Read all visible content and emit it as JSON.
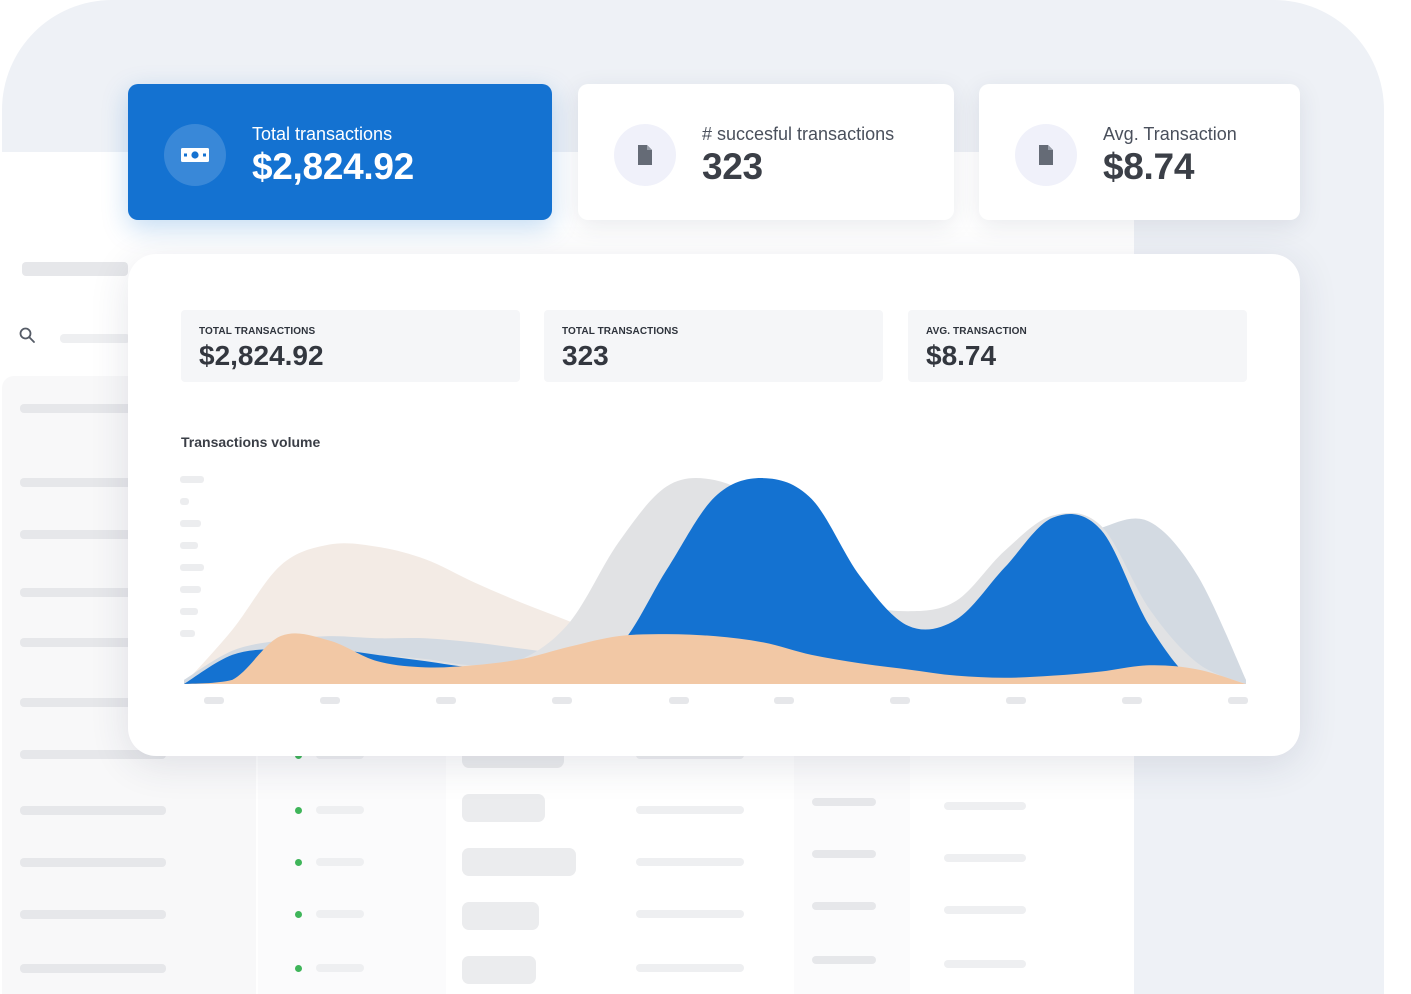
{
  "stats": [
    {
      "label": "Total transactions",
      "value": "$2,824.92",
      "icon": "banknote-icon",
      "primary": true
    },
    {
      "label": "# succesful transactions",
      "value": "323",
      "icon": "document-icon",
      "primary": false
    },
    {
      "label": "Avg. Transaction",
      "value": "$8.74",
      "icon": "document-icon",
      "primary": false
    }
  ],
  "panel": {
    "mini_cards": [
      {
        "label": "TOTAL TRANSACTIONS",
        "value": "$2,824.92"
      },
      {
        "label": "TOTAL TRANSACTIONS",
        "value": "323"
      },
      {
        "label": "AVG. TRANSACTION",
        "value": "$8.74"
      }
    ],
    "chart_title": "Transactions volume"
  },
  "colors": {
    "primary": "#1472d1",
    "series_gray": "#e1e2e4",
    "series_blue_gray": "#d3dae2",
    "series_beige": "#f3ebe5",
    "series_orange": "#f2c8a5",
    "status_green": "#3fb55a"
  },
  "chart_data": {
    "type": "area",
    "title": "Transactions volume",
    "xlabel": "",
    "ylabel": "",
    "x_tick_count": 10,
    "y_tick_count": 8,
    "grid": false,
    "legend": "none",
    "ylim": [
      0,
      100
    ],
    "x": [
      0,
      1,
      2,
      3,
      4,
      5,
      6,
      7,
      8,
      9,
      10,
      11,
      12,
      13,
      14,
      15,
      16,
      17,
      18,
      19,
      20,
      21,
      22
    ],
    "series": [
      {
        "color": "#f3ebe5",
        "values": [
          0,
          26,
          57,
          67,
          66,
          60,
          49,
          39,
          30,
          20,
          12,
          6,
          3,
          1,
          0,
          0,
          0,
          0,
          0,
          0,
          0,
          0,
          0
        ]
      },
      {
        "color": "#d3dae2",
        "values": [
          2,
          16,
          21,
          23,
          22,
          22,
          20,
          17,
          14,
          12,
          16,
          20,
          23,
          26,
          28,
          32,
          38,
          48,
          62,
          75,
          78,
          52,
          2
        ]
      },
      {
        "color": "#e1e2e4",
        "values": [
          0,
          12,
          17,
          16,
          14,
          12,
          9,
          12,
          30,
          68,
          95,
          98,
          86,
          62,
          40,
          35,
          40,
          64,
          81,
          76,
          36,
          10,
          0
        ]
      },
      {
        "color": "#1472d1",
        "values": [
          0,
          14,
          17,
          17,
          14,
          11,
          8,
          9,
          12,
          18,
          55,
          90,
          99,
          89,
          52,
          28,
          31,
          56,
          80,
          74,
          28,
          0,
          0
        ]
      },
      {
        "color": "#f2c8a5",
        "values": [
          0,
          2,
          23,
          21,
          11,
          8,
          9,
          12,
          18,
          23,
          24,
          23,
          20,
          14,
          10,
          7,
          4,
          3,
          4,
          6,
          9,
          7,
          0
        ]
      }
    ]
  }
}
